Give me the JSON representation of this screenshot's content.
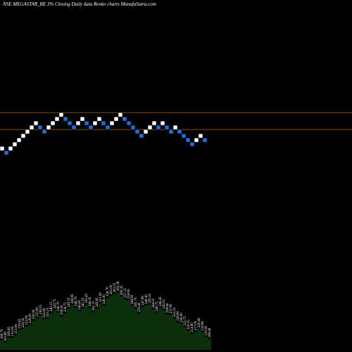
{
  "title": "NSE MEGASTAR_BE 3% Closing Daily data Renko charts MunafaSutra.com",
  "colors": {
    "background": "#000000",
    "up_brick": "#ffffff",
    "down_brick": "#1e6fd9",
    "line": "#b5651d",
    "volume_fill": "#0b2e0b",
    "text": "#ffffff"
  },
  "chart_data": [
    {
      "type": "renko",
      "brick_size_pct": 3,
      "horizontal_lines": [
        {
          "name": "upper",
          "y_level": 15.5
        },
        {
          "name": "lower",
          "y_level": 11.5
        }
      ],
      "bricks": [
        {
          "dir": "up",
          "level": 7
        },
        {
          "dir": "down",
          "level": 6
        },
        {
          "dir": "up",
          "level": 7
        },
        {
          "dir": "up",
          "level": 8
        },
        {
          "dir": "up",
          "level": 9
        },
        {
          "dir": "up",
          "level": 10
        },
        {
          "dir": "up",
          "level": 11
        },
        {
          "dir": "up",
          "level": 12
        },
        {
          "dir": "up",
          "level": 13
        },
        {
          "dir": "down",
          "level": 12
        },
        {
          "dir": "down",
          "level": 11
        },
        {
          "dir": "up",
          "level": 12
        },
        {
          "dir": "up",
          "level": 13
        },
        {
          "dir": "up",
          "level": 14
        },
        {
          "dir": "up",
          "level": 15
        },
        {
          "dir": "down",
          "level": 14
        },
        {
          "dir": "down",
          "level": 13
        },
        {
          "dir": "down",
          "level": 12
        },
        {
          "dir": "up",
          "level": 13
        },
        {
          "dir": "up",
          "level": 14
        },
        {
          "dir": "down",
          "level": 13
        },
        {
          "dir": "down",
          "level": 12
        },
        {
          "dir": "up",
          "level": 13
        },
        {
          "dir": "up",
          "level": 14
        },
        {
          "dir": "down",
          "level": 13
        },
        {
          "dir": "down",
          "level": 12
        },
        {
          "dir": "up",
          "level": 13
        },
        {
          "dir": "up",
          "level": 14
        },
        {
          "dir": "up",
          "level": 15
        },
        {
          "dir": "down",
          "level": 14
        },
        {
          "dir": "down",
          "level": 13
        },
        {
          "dir": "down",
          "level": 12
        },
        {
          "dir": "down",
          "level": 11
        },
        {
          "dir": "down",
          "level": 10
        },
        {
          "dir": "up",
          "level": 11
        },
        {
          "dir": "up",
          "level": 12
        },
        {
          "dir": "up",
          "level": 13
        },
        {
          "dir": "down",
          "level": 12
        },
        {
          "dir": "up",
          "level": 13
        },
        {
          "dir": "down",
          "level": 12
        },
        {
          "dir": "down",
          "level": 11
        },
        {
          "dir": "up",
          "level": 12
        },
        {
          "dir": "down",
          "level": 11
        },
        {
          "dir": "down",
          "level": 10
        },
        {
          "dir": "down",
          "level": 9
        },
        {
          "dir": "down",
          "level": 8
        },
        {
          "dir": "up",
          "level": 9
        },
        {
          "dir": "up",
          "level": 10
        },
        {
          "dir": "down",
          "level": 9
        }
      ],
      "volume_labels": [
        "206.70",
        "203.80",
        "209.85",
        "210.00",
        "213.00",
        "219.45",
        "220.50",
        "223.90",
        "226.00",
        "230.90",
        "233.90",
        "236.55",
        "232.60",
        "233.25",
        "240.15",
        "243.75",
        "240.70",
        "236.00",
        "239.75",
        "245.55",
        "249.85",
        "246.70",
        "242.65",
        "245.35",
        "250.45",
        "246.35",
        "241.15",
        "245.65",
        "251.90",
        "249.30",
        "258.70",
        "261.00",
        "263.55",
        "265.38",
        "260.35",
        "257.15",
        "256.00",
        "248.85",
        "245.70",
        "239.40",
        "247.80",
        "249.30",
        "250.35",
        "244.50",
        "240.75",
        "246.45",
        "243.55",
        "238.60",
        "237.85",
        "233.25",
        "228.80",
        "226.90",
        "222.75",
        "218.35",
        "214.80",
        "217.00",
        "220.60",
        "216.80",
        "210.90",
        "208.40"
      ]
    }
  ]
}
